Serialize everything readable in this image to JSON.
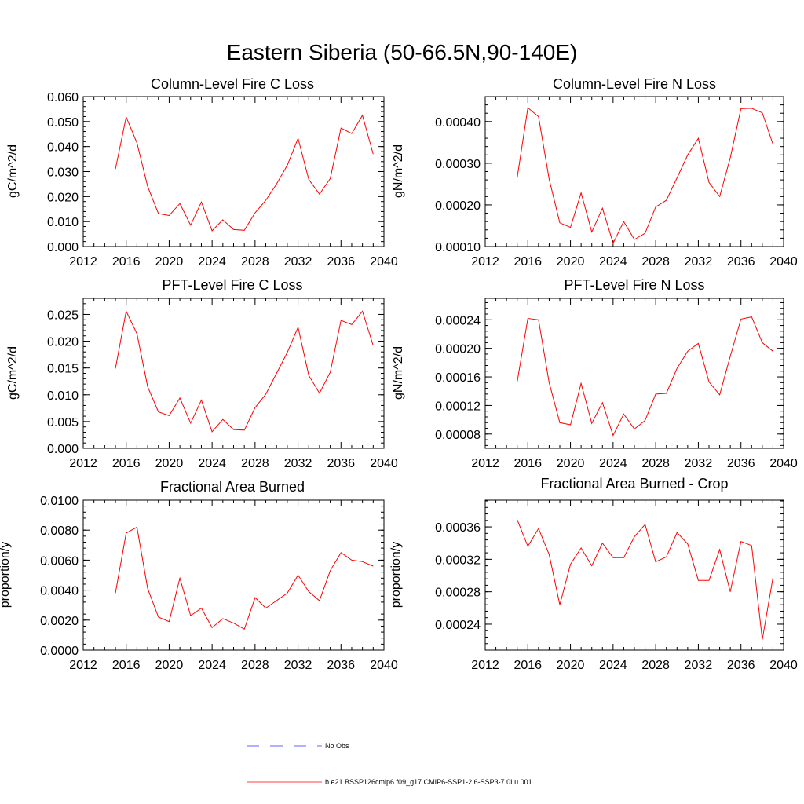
{
  "figure_title": "Eastern Siberia (50-66.5N,90-140E)",
  "legend": [
    {
      "label": "No Obs",
      "color": "#2c2cff",
      "dash": true
    },
    {
      "label": "b.e21.BSSP126cmip6.f09_g17.CMIP6-SSP1-2.6-SSP3-7.0Lu.001",
      "color": "#ff0000",
      "dash": false
    }
  ],
  "chart_data": [
    {
      "type": "line",
      "title": "Column-Level Fire C Loss",
      "ylabel": "gC/m^2/d",
      "xlim": [
        2012,
        2040
      ],
      "ylim": [
        0,
        0.06
      ],
      "xticks": [
        "2012",
        "2016",
        "2020",
        "2024",
        "2028",
        "2032",
        "2036",
        "2040"
      ],
      "yticks": [
        "0.000",
        "0.010",
        "0.020",
        "0.030",
        "0.040",
        "0.050",
        "0.060"
      ],
      "x": [
        2015,
        2016,
        2017,
        2018,
        2019,
        2020,
        2021,
        2022,
        2023,
        2024,
        2025,
        2026,
        2027,
        2028,
        2029,
        2030,
        2031,
        2032,
        2033,
        2034,
        2035,
        2036,
        2037,
        2038,
        2039
      ],
      "series": [
        {
          "color": "#ff0000",
          "values": [
            0.031,
            0.0518,
            0.0415,
            0.024,
            0.0132,
            0.0124,
            0.0172,
            0.0085,
            0.0178,
            0.0063,
            0.0107,
            0.0068,
            0.0065,
            0.0135,
            0.0185,
            0.025,
            0.0325,
            0.0433,
            0.0268,
            0.021,
            0.0272,
            0.0474,
            0.0452,
            0.0525,
            0.037
          ]
        }
      ]
    },
    {
      "type": "line",
      "title": "Column-Level Fire N Loss",
      "ylabel": "gN/m^2/d",
      "xlim": [
        2012,
        2040
      ],
      "ylim": [
        0.0001,
        0.00046
      ],
      "xticks": [
        "2012",
        "2016",
        "2020",
        "2024",
        "2028",
        "2032",
        "2036",
        "2040"
      ],
      "yticks": [
        "0.00010",
        "0.00020",
        "0.00030",
        "0.00040"
      ],
      "x": [
        2015,
        2016,
        2017,
        2018,
        2019,
        2020,
        2021,
        2022,
        2023,
        2024,
        2025,
        2026,
        2027,
        2028,
        2029,
        2030,
        2031,
        2032,
        2033,
        2034,
        2035,
        2036,
        2037,
        2038,
        2039
      ],
      "series": [
        {
          "color": "#ff0000",
          "values": [
            0.000265,
            0.000433,
            0.000412,
            0.000262,
            0.000157,
            0.000146,
            0.000229,
            0.000135,
            0.000192,
            0.000108,
            0.00016,
            0.000117,
            0.000132,
            0.000195,
            0.000211,
            0.000265,
            0.00032,
            0.00036,
            0.000254,
            0.00022,
            0.000313,
            0.000431,
            0.000432,
            0.000421,
            0.000346
          ]
        }
      ]
    },
    {
      "type": "line",
      "title": "PFT-Level Fire C Loss",
      "ylabel": "gC/m^2/d",
      "xlim": [
        2012,
        2040
      ],
      "ylim": [
        0,
        0.028
      ],
      "xticks": [
        "2012",
        "2016",
        "2020",
        "2024",
        "2028",
        "2032",
        "2036",
        "2040"
      ],
      "yticks": [
        "0.000",
        "0.005",
        "0.010",
        "0.015",
        "0.020",
        "0.025"
      ],
      "x": [
        2015,
        2016,
        2017,
        2018,
        2019,
        2020,
        2021,
        2022,
        2023,
        2024,
        2025,
        2026,
        2027,
        2028,
        2029,
        2030,
        2031,
        2032,
        2033,
        2034,
        2035,
        2036,
        2037,
        2038,
        2039
      ],
      "series": [
        {
          "color": "#ff0000",
          "values": [
            0.0149,
            0.0256,
            0.0214,
            0.0115,
            0.0068,
            0.0061,
            0.0094,
            0.0047,
            0.009,
            0.0031,
            0.0054,
            0.0035,
            0.0034,
            0.0076,
            0.0101,
            0.014,
            0.0179,
            0.0226,
            0.0136,
            0.0103,
            0.0142,
            0.0239,
            0.0231,
            0.0256,
            0.0192
          ]
        }
      ]
    },
    {
      "type": "line",
      "title": "PFT-Level Fire N Loss",
      "ylabel": "gN/m^2/d",
      "xlim": [
        2012,
        2040
      ],
      "ylim": [
        6e-05,
        0.00027
      ],
      "xticks": [
        "2012",
        "2016",
        "2020",
        "2024",
        "2028",
        "2032",
        "2036",
        "2040"
      ],
      "yticks": [
        "0.00008",
        "0.00012",
        "0.00016",
        "0.00020",
        "0.00024"
      ],
      "x": [
        2015,
        2016,
        2017,
        2018,
        2019,
        2020,
        2021,
        2022,
        2023,
        2024,
        2025,
        2026,
        2027,
        2028,
        2029,
        2030,
        2031,
        2032,
        2033,
        2034,
        2035,
        2036,
        2037,
        2038,
        2039
      ],
      "series": [
        {
          "color": "#ff0000",
          "values": [
            0.000153,
            0.000242,
            0.00024,
            0.000152,
            9.6e-05,
            9.3e-05,
            0.000151,
            9.5e-05,
            0.000124,
            7.8e-05,
            0.000108,
            8.7e-05,
            9.9e-05,
            0.000136,
            0.000137,
            0.000172,
            0.000196,
            0.000207,
            0.000153,
            0.000135,
            0.000189,
            0.000241,
            0.000244,
            0.000208,
            0.000196
          ]
        }
      ]
    },
    {
      "type": "line",
      "title": "Fractional Area Burned",
      "ylabel": "proportion/y",
      "xlim": [
        2012,
        2040
      ],
      "ylim": [
        0,
        0.01
      ],
      "xticks": [
        "2012",
        "2016",
        "2020",
        "2024",
        "2028",
        "2032",
        "2036",
        "2040"
      ],
      "yticks": [
        "0.0000",
        "0.0020",
        "0.0040",
        "0.0060",
        "0.0080",
        "0.0100"
      ],
      "x": [
        2015,
        2016,
        2017,
        2018,
        2019,
        2020,
        2021,
        2022,
        2023,
        2024,
        2025,
        2026,
        2027,
        2028,
        2029,
        2030,
        2031,
        2032,
        2033,
        2034,
        2035,
        2036,
        2037,
        2038,
        2039
      ],
      "series": [
        {
          "color": "#ff0000",
          "values": [
            0.0038,
            0.0078,
            0.0082,
            0.0041,
            0.0022,
            0.0019,
            0.0048,
            0.0023,
            0.0028,
            0.0015,
            0.0021,
            0.0018,
            0.0014,
            0.0035,
            0.0028,
            0.0033,
            0.0038,
            0.005,
            0.0039,
            0.0033,
            0.0053,
            0.0065,
            0.006,
            0.0059,
            0.0056
          ]
        }
      ]
    },
    {
      "type": "line",
      "title": "Fractional Area Burned - Crop",
      "ylabel": "proportion/y",
      "xlim": [
        2012,
        2040
      ],
      "ylim": [
        0.000208,
        0.000393
      ],
      "xticks": [
        "2012",
        "2016",
        "2020",
        "2024",
        "2028",
        "2032",
        "2036",
        "2040"
      ],
      "yticks": [
        "0.00024",
        "0.00028",
        "0.00032",
        "0.00036"
      ],
      "x": [
        2015,
        2016,
        2017,
        2018,
        2019,
        2020,
        2021,
        2022,
        2023,
        2024,
        2025,
        2026,
        2027,
        2028,
        2029,
        2030,
        2031,
        2032,
        2033,
        2034,
        2035,
        2036,
        2037,
        2038,
        2039
      ],
      "series": [
        {
          "color": "#ff0000",
          "values": [
            0.000369,
            0.000336,
            0.000358,
            0.000326,
            0.000264,
            0.000314,
            0.000334,
            0.000312,
            0.00034,
            0.000322,
            0.000322,
            0.000348,
            0.000363,
            0.000317,
            0.000323,
            0.000353,
            0.000339,
            0.000294,
            0.000294,
            0.000332,
            0.00028,
            0.000342,
            0.000337,
            0.000221,
            0.000297
          ]
        }
      ]
    }
  ]
}
